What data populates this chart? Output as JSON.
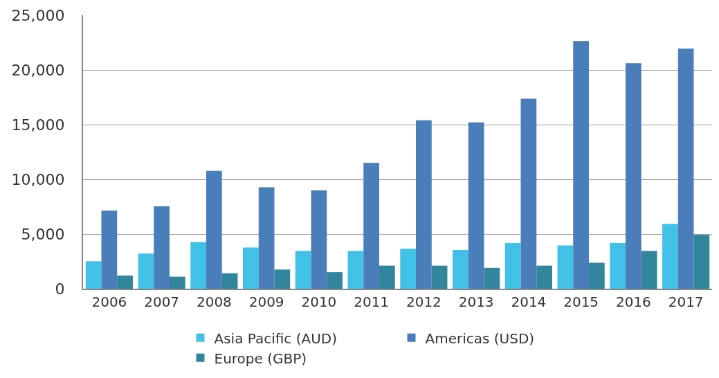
{
  "chart_data": {
    "type": "bar",
    "categories": [
      "2006",
      "2007",
      "2008",
      "2009",
      "2010",
      "2011",
      "2012",
      "2013",
      "2014",
      "2015",
      "2016",
      "2017"
    ],
    "series": [
      {
        "name": "Asia Pacific (AUD)",
        "color": "#41c0e8",
        "values": [
          2510,
          3210,
          4260,
          3760,
          3450,
          3450,
          3650,
          3550,
          4180,
          3960,
          4180,
          5920
        ]
      },
      {
        "name": "Americas (USD)",
        "color": "#4a7ebb",
        "values": [
          7130,
          7530,
          10780,
          9280,
          8980,
          11510,
          15400,
          15200,
          17370,
          22650,
          20620,
          21950
        ]
      },
      {
        "name": "Europe (GBP)",
        "color": "#31859c",
        "values": [
          1200,
          1100,
          1410,
          1750,
          1510,
          2110,
          2110,
          1910,
          2110,
          2370,
          3450,
          4920
        ]
      }
    ],
    "ylim": [
      0,
      25000
    ],
    "yticks": [
      {
        "value": 0,
        "label": "0"
      },
      {
        "value": 5000,
        "label": "5,000"
      },
      {
        "value": 10000,
        "label": "10,000"
      },
      {
        "value": 15000,
        "label": "15,000"
      },
      {
        "value": 20000,
        "label": "20,000"
      },
      {
        "value": 25000,
        "label": "25,000"
      }
    ],
    "grid": "y",
    "legend": "bottom"
  }
}
